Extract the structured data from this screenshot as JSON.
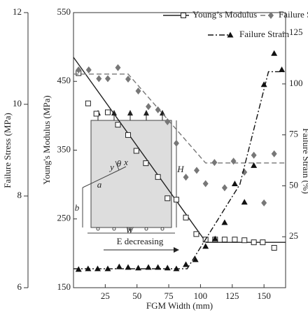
{
  "chart_data": {
    "type": "scatter",
    "x_label": "FGM Width (mm)",
    "y_label": "Young's Modulus (MPa)",
    "y2_label": "Failure Strain (%)",
    "y3_label": "Failure Stress (MPa)",
    "xlim": [
      0,
      167
    ],
    "xticks": [
      25,
      50,
      75,
      100,
      125,
      150
    ],
    "ylim": [
      150,
      550
    ],
    "yticks": [
      150,
      250,
      350,
      450,
      550
    ],
    "y2lim": [
      0,
      135
    ],
    "y2ticks": [
      25,
      50,
      75,
      100,
      125
    ],
    "y3lim": [
      6,
      12
    ],
    "y3ticks": [
      6,
      8,
      10,
      12
    ],
    "series": [
      {
        "name": "Young’s Modulus",
        "color": "#222222",
        "marker": "square",
        "line": "solid",
        "axis": "y",
        "x": [
          4,
          11.5,
          18,
          27,
          35,
          43,
          49.5,
          57,
          66.5,
          74,
          81,
          88.5,
          96.7,
          104,
          111.5,
          119,
          127,
          134.6,
          142,
          149,
          158
        ],
        "values": [
          462,
          418,
          403,
          405,
          387,
          372,
          349,
          331,
          311,
          280,
          278,
          252,
          228,
          220,
          220,
          220,
          220,
          219,
          216,
          216,
          208
        ],
        "fit_x": [
          0,
          104.4,
          167
        ],
        "fit_values": [
          485,
          216,
          216
        ]
      },
      {
        "name": "Failure Stress",
        "color": "#777777",
        "marker": "diamond",
        "line": "dashed",
        "axis": "y3",
        "x": [
          4,
          12,
          20,
          27,
          35,
          43,
          51,
          59,
          66.5,
          74,
          81,
          88.5,
          97,
          104,
          111,
          119,
          126,
          134.6,
          142,
          150,
          158
        ],
        "values": [
          10.75,
          10.75,
          10.56,
          10.56,
          10.8,
          10.55,
          10.29,
          9.95,
          9.88,
          9.62,
          9.15,
          8.41,
          8.56,
          8.27,
          8.73,
          8.18,
          8.76,
          8.52,
          8.89,
          7.85,
          8.92
        ],
        "fit_x": [
          0,
          43,
          104,
          167
        ],
        "fit_values": [
          10.66,
          10.66,
          8.72,
          8.72
        ]
      },
      {
        "name": "Failure Strain",
        "color": "#111111",
        "marker": "triangle",
        "line": "dashdot",
        "axis": "y2",
        "x": [
          4,
          11.5,
          19,
          27,
          36,
          43,
          51,
          59,
          66.5,
          74,
          81,
          88.5,
          96,
          104,
          111.5,
          119,
          127,
          134.6,
          142,
          150,
          158,
          164
        ],
        "values": [
          9,
          9.3,
          9.3,
          9.3,
          10.3,
          10,
          9.7,
          10,
          10,
          9.7,
          9.3,
          11.4,
          13.8,
          20.3,
          24,
          32,
          51,
          42,
          60,
          99.7,
          115,
          107
        ],
        "fit_x": [
          0,
          89.5,
          131,
          153.5,
          167
        ],
        "fit_values": [
          9.3,
          9.3,
          50.7,
          106,
          106
        ]
      }
    ],
    "annotations": [
      "E decreasing",
      "W",
      "H",
      "b",
      "a",
      "x",
      "y",
      "θ"
    ]
  }
}
